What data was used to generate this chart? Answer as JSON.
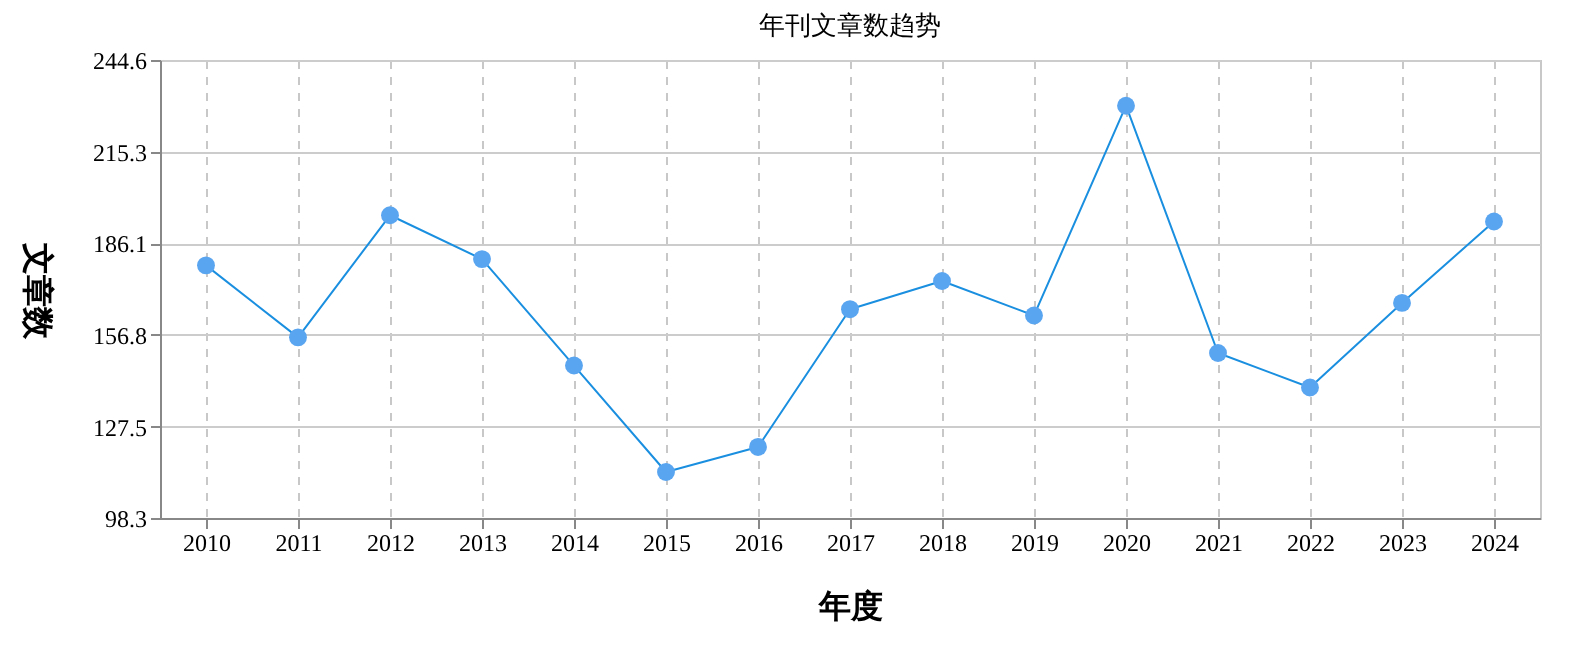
{
  "chart_data": {
    "type": "line",
    "title": "年刊文章数趋势",
    "xlabel": "年度",
    "ylabel": "文章数",
    "categories": [
      "2010",
      "2011",
      "2012",
      "2013",
      "2014",
      "2015",
      "2016",
      "2017",
      "2018",
      "2019",
      "2020",
      "2021",
      "2022",
      "2023",
      "2024"
    ],
    "series": [
      {
        "color": "#1a8fe0",
        "values": [
          179,
          156,
          195,
          181,
          147,
          113,
          121,
          165,
          174,
          163,
          230,
          151,
          140,
          167,
          193
        ]
      }
    ],
    "ylim": [
      98.3,
      244.6
    ],
    "yticks": [
      98.3,
      127.5,
      156.8,
      186.1,
      215.3,
      244.6
    ],
    "grid": true,
    "marker": "circle",
    "line_style": "solid"
  }
}
